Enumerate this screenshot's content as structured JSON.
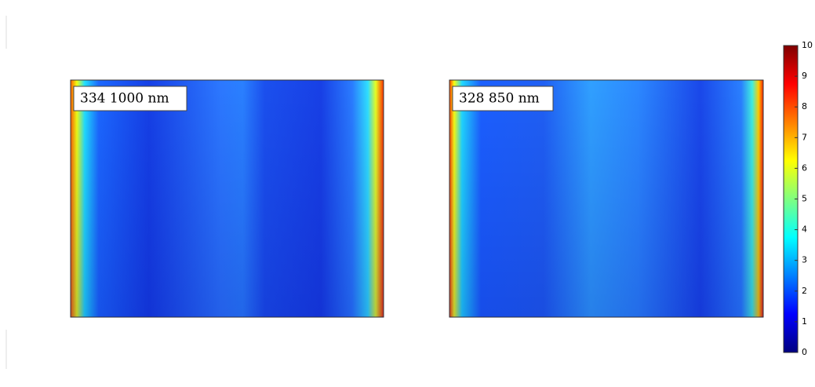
{
  "chart_data": {
    "type": "heatmap",
    "colormap": "jet",
    "panels": [
      {
        "label": "334 1000 nm"
      },
      {
        "label": "328 850 nm"
      }
    ],
    "clim": [
      0,
      10
    ],
    "cticks": [
      0,
      1,
      2,
      3,
      4,
      5,
      6,
      7,
      8,
      9,
      10
    ]
  }
}
